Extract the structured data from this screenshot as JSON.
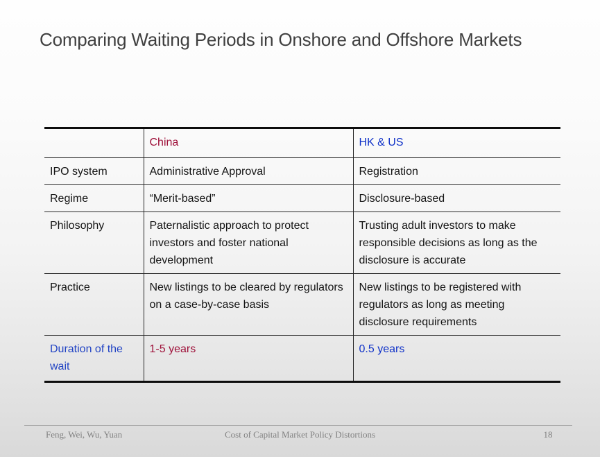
{
  "slide": {
    "title": "Comparing Waiting Periods in Onshore and Offshore Markets",
    "colors": {
      "title_text": "#3F3F3F",
      "china_accent": "#9E1039",
      "hk_us_accent": "#1032C8",
      "duration_label_blue": "#2244C4",
      "body_text": "#141414",
      "footer_text": "#818181",
      "background_bottom": "#D9D9D9"
    }
  },
  "table": {
    "header": {
      "col1": "",
      "col2": "China",
      "col3": "HK & US"
    },
    "rows": [
      {
        "label": "IPO system",
        "china": "Administrative Approval",
        "hkus": "Registration"
      },
      {
        "label": "Regime",
        "china": "“Merit-based”",
        "hkus": "Disclosure-based"
      },
      {
        "label": "Philosophy",
        "china": "Paternalistic approach to protect investors and foster national development",
        "hkus": "Trusting adult investors to make responsible decisions as long as the disclosure is accurate"
      },
      {
        "label": "Practice",
        "china": "New listings to be cleared by regulators on a case-by-case basis",
        "hkus": "New listings to be registered with regulators as long as meeting disclosure requirements"
      },
      {
        "label": "Duration of the wait",
        "china": "1-5 years",
        "hkus": "0.5 years"
      }
    ]
  },
  "footer": {
    "authors": "Feng, Wei, Wu, Yuan",
    "deck_title": "Cost of Capital Market Policy Distortions",
    "page_number": "18"
  }
}
